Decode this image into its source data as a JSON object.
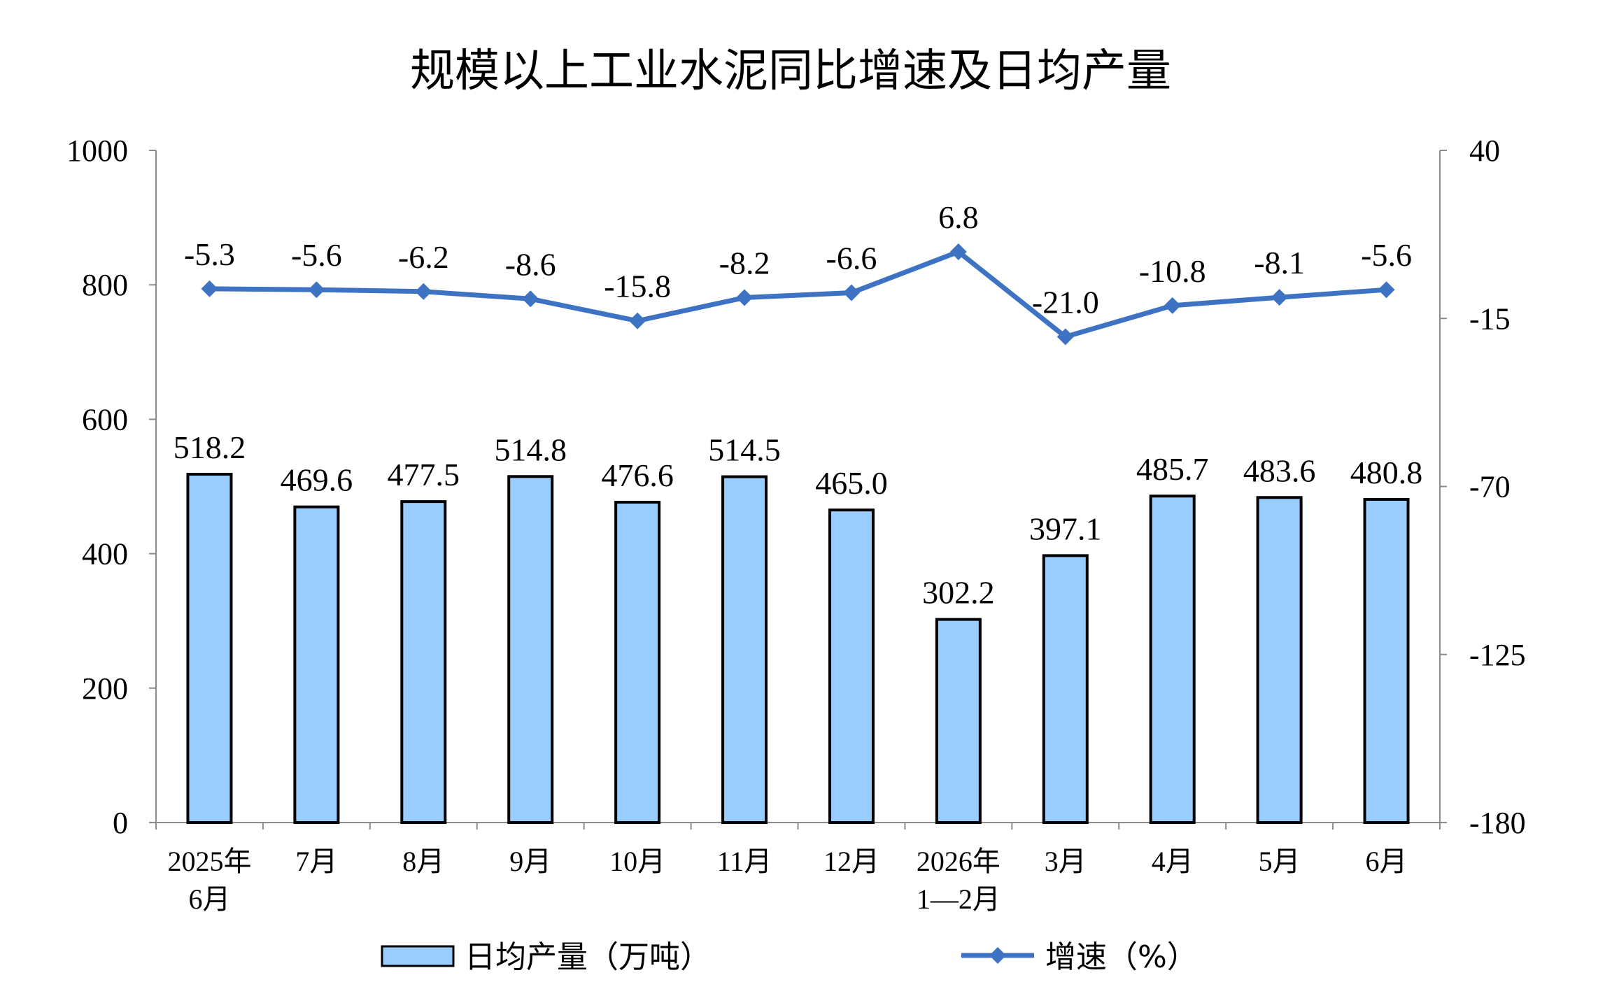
{
  "chart_data": {
    "type": "bar",
    "title": "规模以上工业水泥同比增速及日均产量",
    "categories": [
      [
        "2025年",
        "6月"
      ],
      [
        "7月"
      ],
      [
        "8月"
      ],
      [
        "9月"
      ],
      [
        "10月"
      ],
      [
        "11月"
      ],
      [
        "12月"
      ],
      [
        "2026年",
        "1—2月"
      ],
      [
        "3月"
      ],
      [
        "4月"
      ],
      [
        "5月"
      ],
      [
        "6月"
      ]
    ],
    "series": [
      {
        "name": "日均产量（万吨）",
        "type": "bar",
        "axis": "left",
        "color": "#99ccff",
        "values": [
          518.2,
          469.6,
          477.5,
          514.8,
          476.6,
          514.5,
          465.0,
          302.2,
          397.1,
          485.7,
          483.6,
          480.8
        ],
        "labels": [
          "518.2",
          "469.6",
          "477.5",
          "514.8",
          "476.6",
          "514.5",
          "465.0",
          "302.2",
          "397.1",
          "485.7",
          "483.6",
          "480.8"
        ]
      },
      {
        "name": "增速（%）",
        "type": "line",
        "axis": "right",
        "color": "#3d73c2",
        "marker": "diamond",
        "values": [
          -5.3,
          -5.6,
          -6.2,
          -8.6,
          -15.8,
          -8.2,
          -6.6,
          6.8,
          -21.0,
          -10.8,
          -8.1,
          -5.6
        ],
        "labels": [
          "-5.3",
          "-5.6",
          "-6.2",
          "-8.6",
          "-15.8",
          "-8.2",
          "-6.6",
          "6.8",
          "-21.0",
          "-10.8",
          "-8.1",
          "-5.6"
        ]
      }
    ],
    "y_left": {
      "range": [
        0,
        1000
      ],
      "ticks": [
        "0",
        "200",
        "400",
        "600",
        "800",
        "1000"
      ]
    },
    "y_right": {
      "range": [
        -180,
        40
      ],
      "ticks": [
        "-180",
        "-125",
        "-70",
        "-15",
        "40"
      ]
    },
    "grid": false,
    "legend": "bottom"
  }
}
